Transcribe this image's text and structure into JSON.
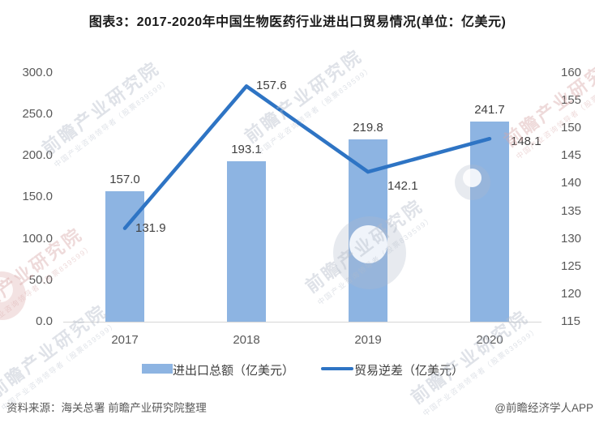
{
  "title": "图表3：2017-2020年中国生物医药行业进出口贸易情况(单位：亿美元)",
  "chart_data": {
    "type": "bar",
    "title": "2017-2020年中国生物医药行业进出口贸易情况(单位：亿美元)",
    "categories": [
      "2017",
      "2018",
      "2019",
      "2020"
    ],
    "series": [
      {
        "name": "进出口总额（亿美元）",
        "chart_type": "bar",
        "axis": "left",
        "values": [
          157.0,
          193.1,
          219.8,
          241.7
        ],
        "labels": [
          "157.0",
          "193.1",
          "219.8",
          "241.7"
        ],
        "color": "#8DB4E2"
      },
      {
        "name": "贸易逆差（亿美元）",
        "chart_type": "line",
        "axis": "right",
        "values": [
          131.9,
          157.6,
          142.1,
          148.1
        ],
        "labels": [
          "131.9",
          "157.6",
          "142.1",
          "148.1"
        ],
        "color": "#2E74C4"
      }
    ],
    "left_axis": {
      "range": [
        0,
        300
      ],
      "ticks": [
        "300.0",
        "250.0",
        "200.0",
        "150.0",
        "100.0",
        "50.0",
        "0.0"
      ]
    },
    "right_axis": {
      "range": [
        115,
        160
      ],
      "ticks": [
        "160",
        "155",
        "150",
        "145",
        "140",
        "135",
        "130",
        "125",
        "120",
        "115"
      ]
    },
    "grid": false,
    "legend_position": "bottom"
  },
  "footer": {
    "source": "资料来源：海关总署 前瞻产业研究院整理",
    "credit": "@前瞻经济学人APP"
  },
  "watermark": {
    "main": "前瞻产业研究院",
    "sub": "中国产业咨询领导者（股票839599）"
  },
  "colors": {
    "bar": "#8DB4E2",
    "line": "#2E74C4",
    "axis_text": "#595959",
    "label_text": "#404040"
  }
}
